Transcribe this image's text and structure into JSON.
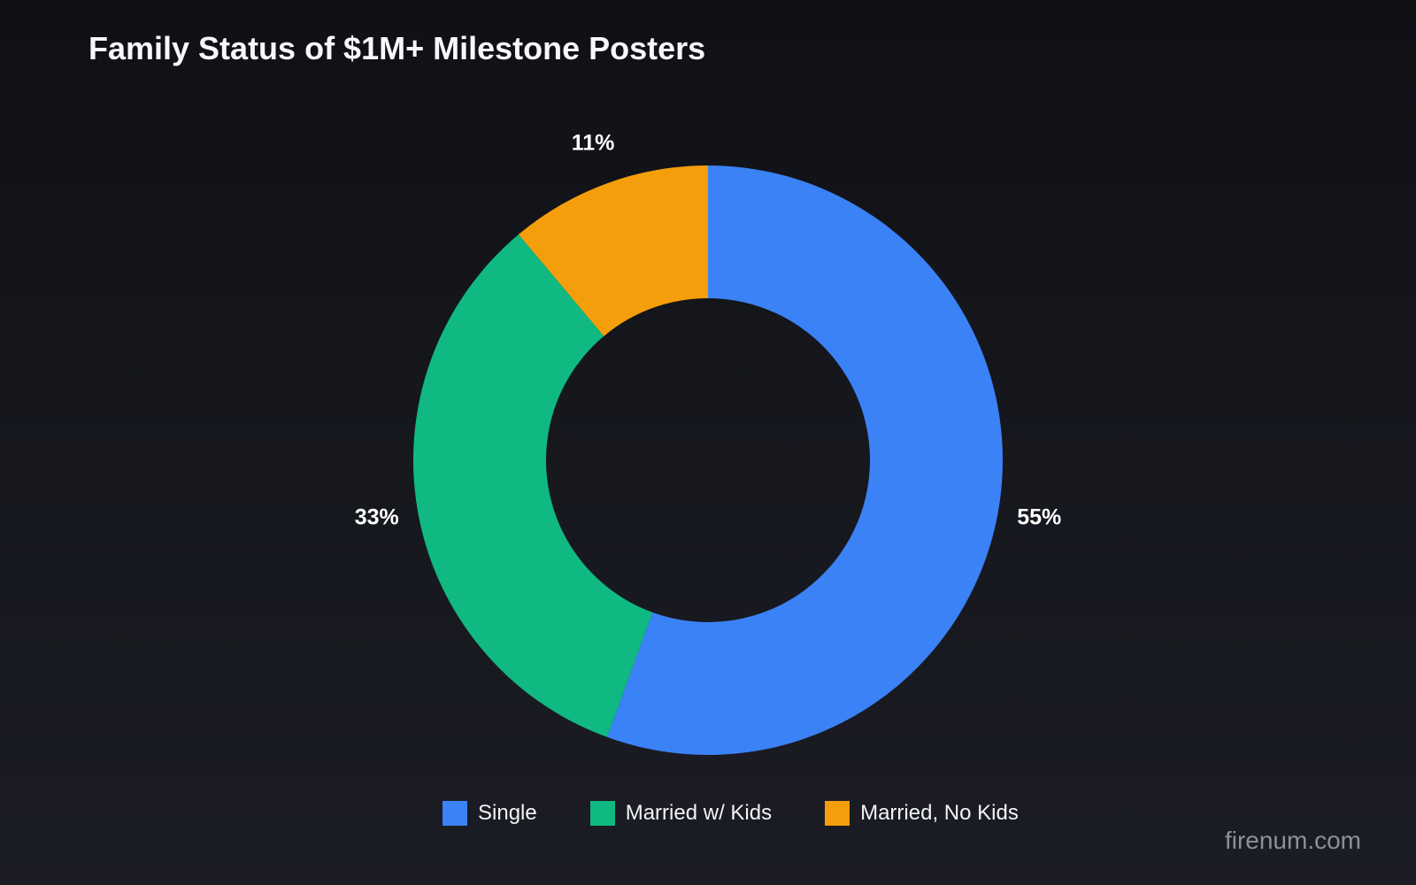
{
  "chart_data": {
    "type": "pie",
    "title": "Family Status of $1M+ Milestone Posters",
    "categories": [
      "Single",
      "Married w/ Kids",
      "Married, No Kids"
    ],
    "values": [
      55,
      33,
      11
    ],
    "value_labels": [
      "55%",
      "33%",
      "11%"
    ],
    "colors": [
      "#3b82f6",
      "#10b981",
      "#f59e0b"
    ],
    "legend_position": "bottom",
    "start": "top",
    "direction": "clockwise",
    "donut": true
  },
  "watermark": "firenum.com"
}
